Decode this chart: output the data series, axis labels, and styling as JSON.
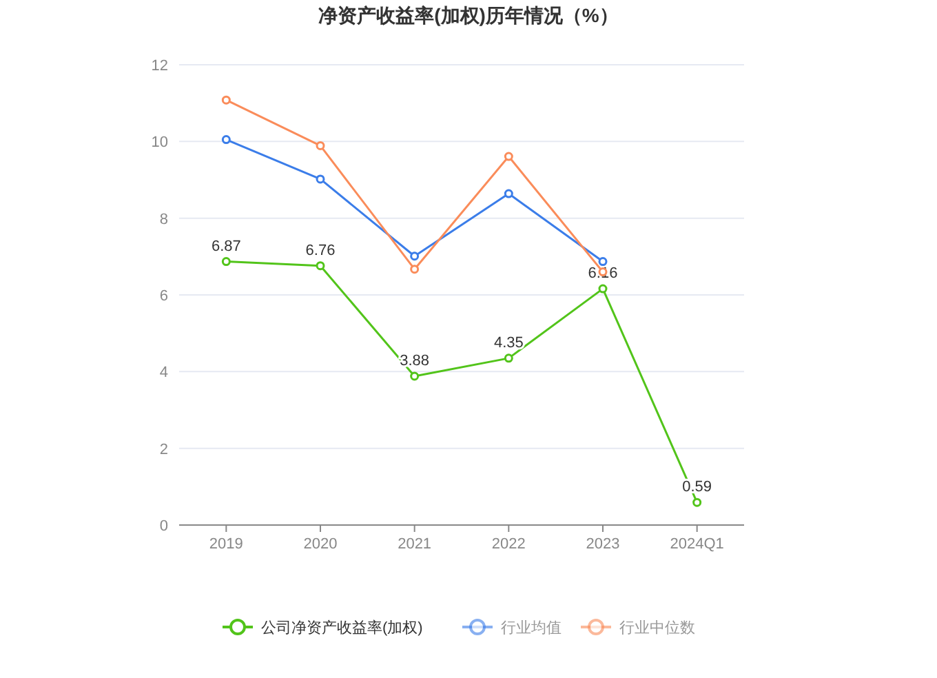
{
  "chart_data": {
    "type": "line",
    "title": "净资产收益率(加权)历年情况（%）",
    "categories": [
      "2019",
      "2020",
      "2021",
      "2022",
      "2023",
      "2024Q1"
    ],
    "series": [
      {
        "name": "公司净资产收益率(加权)",
        "color": "#52c41a",
        "values": [
          6.87,
          6.76,
          3.88,
          4.35,
          6.16,
          0.59
        ],
        "value_labels": [
          "6.87",
          "6.76",
          "3.88",
          "4.35",
          "6.16",
          "0.59"
        ]
      },
      {
        "name": "行业均值",
        "color": "#3b7de9",
        "values": [
          10.05,
          9.02,
          7.01,
          8.64,
          6.87,
          null
        ]
      },
      {
        "name": "行业中位数",
        "color": "#fa8c5a",
        "values": [
          11.08,
          9.89,
          6.67,
          9.61,
          6.6,
          null
        ]
      }
    ],
    "ylim": [
      0,
      12
    ],
    "yticks": [
      0,
      2,
      4,
      6,
      8,
      10,
      12
    ],
    "grid": "y",
    "legend": "bottom",
    "marker": "circle"
  }
}
